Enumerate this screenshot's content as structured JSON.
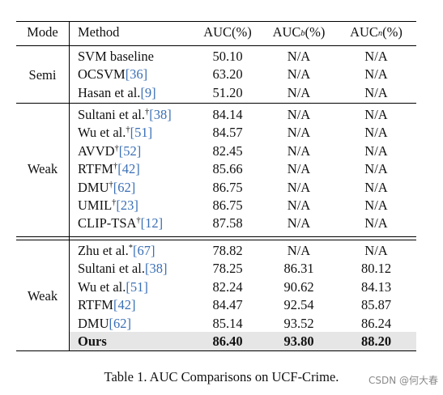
{
  "table": {
    "headers": {
      "mode": "Mode",
      "method": "Method",
      "auc": "AUC(%)",
      "auc_b_prefix": "AUC",
      "auc_b_sub": "b",
      "auc_b_suffix": "(%)",
      "auc_n_prefix": "AUC",
      "auc_n_sub": "n",
      "auc_n_suffix": "(%)"
    },
    "groups": [
      {
        "mode": "Semi",
        "rows": [
          {
            "name": "SVM baseline",
            "mark": "",
            "cite": "",
            "auc": "50.10",
            "auc_b": "N/A",
            "auc_n": "N/A"
          },
          {
            "name": "OCSVM",
            "mark": "",
            "cite": "[36]",
            "auc": "63.20",
            "auc_b": "N/A",
            "auc_n": "N/A"
          },
          {
            "name": "Hasan et al.",
            "mark": "",
            "cite": "[9]",
            "auc": "51.20",
            "auc_b": "N/A",
            "auc_n": "N/A"
          }
        ]
      },
      {
        "mode": "Weak",
        "rows": [
          {
            "name": "Sultani et al.",
            "mark": "†",
            "cite": "[38]",
            "auc": "84.14",
            "auc_b": "N/A",
            "auc_n": "N/A"
          },
          {
            "name": "Wu et al.",
            "mark": "†",
            "cite": "[51]",
            "auc": "84.57",
            "auc_b": "N/A",
            "auc_n": "N/A"
          },
          {
            "name": "AVVD",
            "mark": "†",
            "cite": "[52]",
            "auc": "82.45",
            "auc_b": "N/A",
            "auc_n": "N/A"
          },
          {
            "name": "RTFM",
            "mark": "†",
            "cite": "[42]",
            "auc": "85.66",
            "auc_b": "N/A",
            "auc_n": "N/A"
          },
          {
            "name": "DMU",
            "mark": "†",
            "cite": "[62]",
            "auc": "86.75",
            "auc_b": "N/A",
            "auc_n": "N/A"
          },
          {
            "name": "UMIL",
            "mark": "†",
            "cite": "[23]",
            "auc": "86.75",
            "auc_b": "N/A",
            "auc_n": "N/A"
          },
          {
            "name": "CLIP-TSA",
            "mark": "†",
            "cite": "[12]",
            "auc": "87.58",
            "auc_b": "N/A",
            "auc_n": "N/A"
          }
        ]
      },
      {
        "mode": "Weak",
        "rows": [
          {
            "name": "Zhu et al.",
            "mark": "*",
            "cite": "[67]",
            "auc": "78.82",
            "auc_b": "N/A",
            "auc_n": "N/A"
          },
          {
            "name": "Sultani et al.",
            "mark": "",
            "cite": "[38]",
            "auc": "78.25",
            "auc_b": "86.31",
            "auc_n": "80.12"
          },
          {
            "name": "Wu et al.",
            "mark": "",
            "cite": "[51]",
            "auc": "82.24",
            "auc_b": "90.62",
            "auc_n": "84.13"
          },
          {
            "name": "RTFM",
            "mark": "",
            "cite": "[42]",
            "auc": "84.47",
            "auc_b": "92.54",
            "auc_n": "85.87"
          },
          {
            "name": "DMU",
            "mark": "",
            "cite": "[62]",
            "auc": "85.14",
            "auc_b": "93.52",
            "auc_n": "86.24"
          },
          {
            "name": "Ours",
            "mark": "",
            "cite": "",
            "auc": "86.40",
            "auc_b": "93.80",
            "auc_n": "88.20",
            "bold": true
          }
        ]
      }
    ]
  },
  "caption": "Table 1. AUC Comparisons on UCF-Crime.",
  "watermark": "CSDN @何大春"
}
